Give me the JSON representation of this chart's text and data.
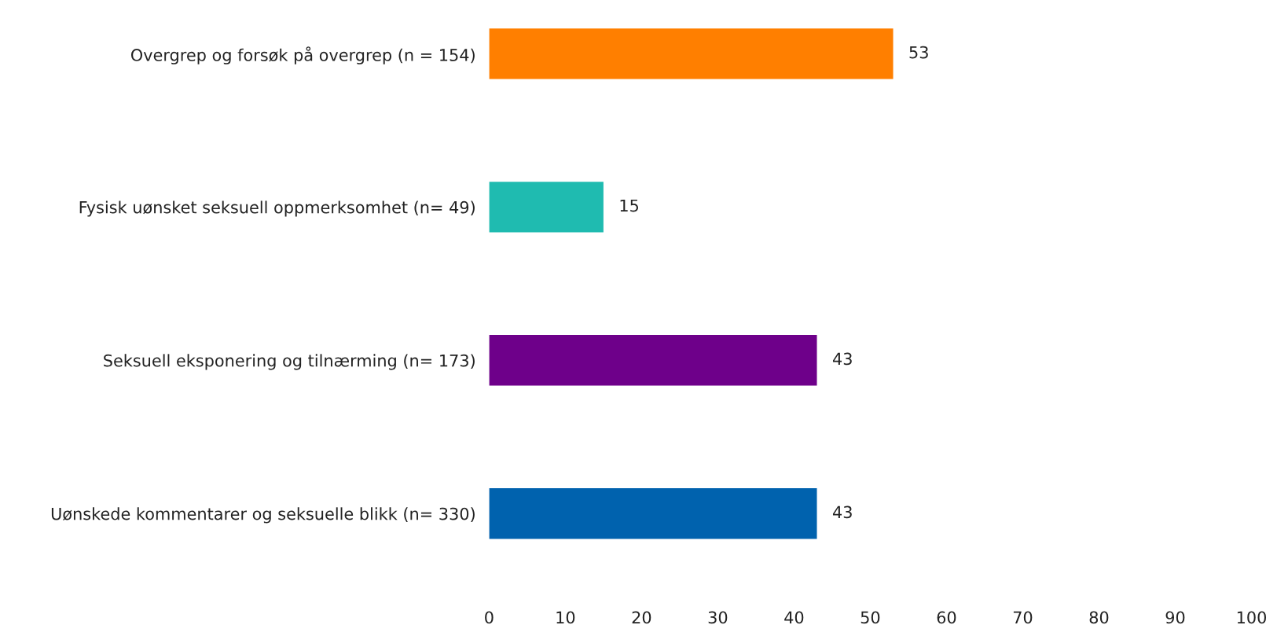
{
  "chart_data": {
    "type": "bar",
    "orientation": "horizontal",
    "categories": [
      "Overgrep og forsøk på overgrep (n = 154)",
      "Fysisk uønsket seksuell oppmerksomhet (n= 49)",
      "Seksuell eksponering og tilnærming (n= 173)",
      "Uønskede kommentarer og seksuelle blikk (n= 330)"
    ],
    "values": [
      53,
      15,
      43,
      43
    ],
    "colors": [
      "#ff7f00",
      "#1fbbb0",
      "#6e008a",
      "#0062ae"
    ],
    "xlim": [
      0,
      100
    ],
    "xticks": [
      0,
      10,
      20,
      30,
      40,
      50,
      60,
      70,
      80,
      90,
      100
    ],
    "data_labels": true,
    "grid": false,
    "legend": false
  }
}
